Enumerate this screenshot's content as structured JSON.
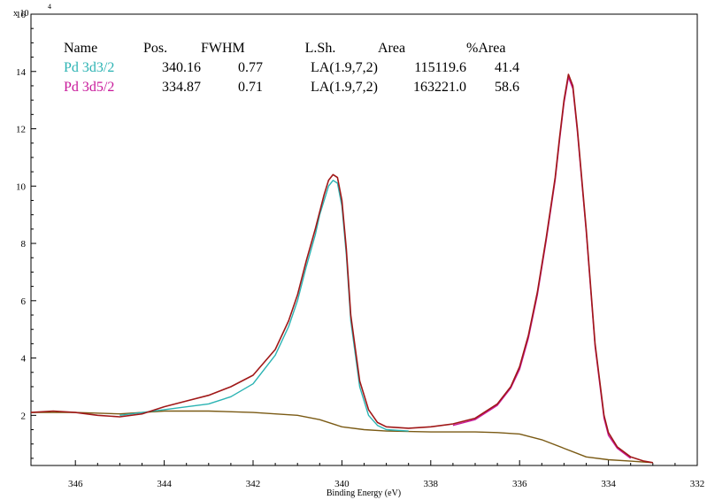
{
  "chart_data": {
    "type": "line",
    "title": "",
    "xlabel": "Binding Energy (eV)",
    "ylabel": "",
    "xlim": [
      347,
      332
    ],
    "x_reversed": true,
    "ylim": [
      0.25,
      16
    ],
    "y_multiplier_label": "x 10",
    "y_multiplier_exponent": "4",
    "x_ticks": [
      346,
      344,
      342,
      340,
      338,
      336,
      334,
      332
    ],
    "y_ticks": [
      2,
      4,
      6,
      8,
      10,
      12,
      14,
      16
    ],
    "legend_table": {
      "headers": [
        "Name",
        "Pos.",
        "FWHM",
        "L.Sh.",
        "Area",
        "%Area"
      ],
      "rows": [
        {
          "name": "Pd 3d3/2",
          "pos": "340.16",
          "fwhm": "0.77",
          "lsh": "LA(1.9,7,2)",
          "area": "115119.6",
          "parea": "41.4",
          "color": "#2bb3b3"
        },
        {
          "name": "Pd 3d5/2",
          "pos": "334.87",
          "fwhm": "0.71",
          "lsh": "LA(1.9,7,2)",
          "area": "163221.0",
          "parea": "58.6",
          "color": "#c8189a"
        }
      ]
    },
    "series": [
      {
        "name": "",
        "role": "envelope",
        "color": "#a01818",
        "x": [
          347,
          346.5,
          346,
          345.5,
          345,
          344.5,
          344,
          343.5,
          343,
          342.5,
          342,
          341.5,
          341.2,
          341,
          340.8,
          340.6,
          340.5,
          340.4,
          340.3,
          340.2,
          340.1,
          340.0,
          339.9,
          339.8,
          339.6,
          339.4,
          339.2,
          339,
          338.5,
          338,
          337.5,
          337,
          336.5,
          336.2,
          336,
          335.8,
          335.6,
          335.4,
          335.2,
          335.1,
          335.0,
          334.9,
          334.8,
          334.7,
          334.5,
          334.3,
          334.1,
          334,
          333.8,
          333.5,
          333.2,
          333
        ],
        "y": [
          2.1,
          2.15,
          2.1,
          2.0,
          1.95,
          2.05,
          2.3,
          2.5,
          2.7,
          3.0,
          3.4,
          4.3,
          5.3,
          6.2,
          7.4,
          8.5,
          9.1,
          9.7,
          10.2,
          10.4,
          10.3,
          9.5,
          7.8,
          5.5,
          3.2,
          2.2,
          1.75,
          1.6,
          1.55,
          1.6,
          1.7,
          1.9,
          2.4,
          3.0,
          3.7,
          4.8,
          6.3,
          8.2,
          10.3,
          11.7,
          13.0,
          13.9,
          13.5,
          12.0,
          8.5,
          4.5,
          2.0,
          1.4,
          0.9,
          0.55,
          0.4,
          0.35
        ]
      },
      {
        "name": "Pd 3d3/2",
        "role": "component",
        "color": "#2bb3b3",
        "x": [
          345,
          344,
          343,
          342.5,
          342,
          341.5,
          341.2,
          341,
          340.8,
          340.6,
          340.5,
          340.4,
          340.3,
          340.2,
          340.1,
          340.0,
          339.9,
          339.8,
          339.6,
          339.4,
          339.2,
          339,
          338.5
        ],
        "y": [
          2.0,
          2.2,
          2.4,
          2.65,
          3.1,
          4.1,
          5.1,
          6.0,
          7.2,
          8.3,
          9.0,
          9.5,
          10.0,
          10.2,
          10.1,
          9.3,
          7.6,
          5.3,
          3.0,
          2.0,
          1.65,
          1.5,
          1.45
        ]
      },
      {
        "name": "Pd 3d5/2",
        "role": "component",
        "color": "#c8189a",
        "x": [
          337.5,
          337,
          336.5,
          336.2,
          336,
          335.8,
          335.6,
          335.4,
          335.2,
          335.1,
          335.0,
          334.9,
          334.8,
          334.7,
          334.5,
          334.3,
          334.1,
          334,
          333.8,
          333.5
        ],
        "y": [
          1.65,
          1.85,
          2.35,
          2.95,
          3.6,
          4.7,
          6.2,
          8.1,
          10.2,
          11.6,
          12.9,
          13.8,
          13.4,
          11.9,
          8.4,
          4.4,
          1.9,
          1.3,
          0.85,
          0.5
        ]
      },
      {
        "name": "",
        "role": "background",
        "color": "#7a5a14",
        "x": [
          347,
          346,
          345,
          344,
          343,
          342,
          341,
          340.5,
          340,
          339.5,
          339,
          338,
          337,
          336.5,
          336,
          335.5,
          335,
          334.5,
          334,
          333.5,
          333
        ],
        "y": [
          2.1,
          2.1,
          2.05,
          2.15,
          2.15,
          2.1,
          2.0,
          1.85,
          1.6,
          1.5,
          1.45,
          1.42,
          1.42,
          1.4,
          1.35,
          1.15,
          0.85,
          0.55,
          0.45,
          0.4,
          0.35
        ]
      }
    ]
  }
}
